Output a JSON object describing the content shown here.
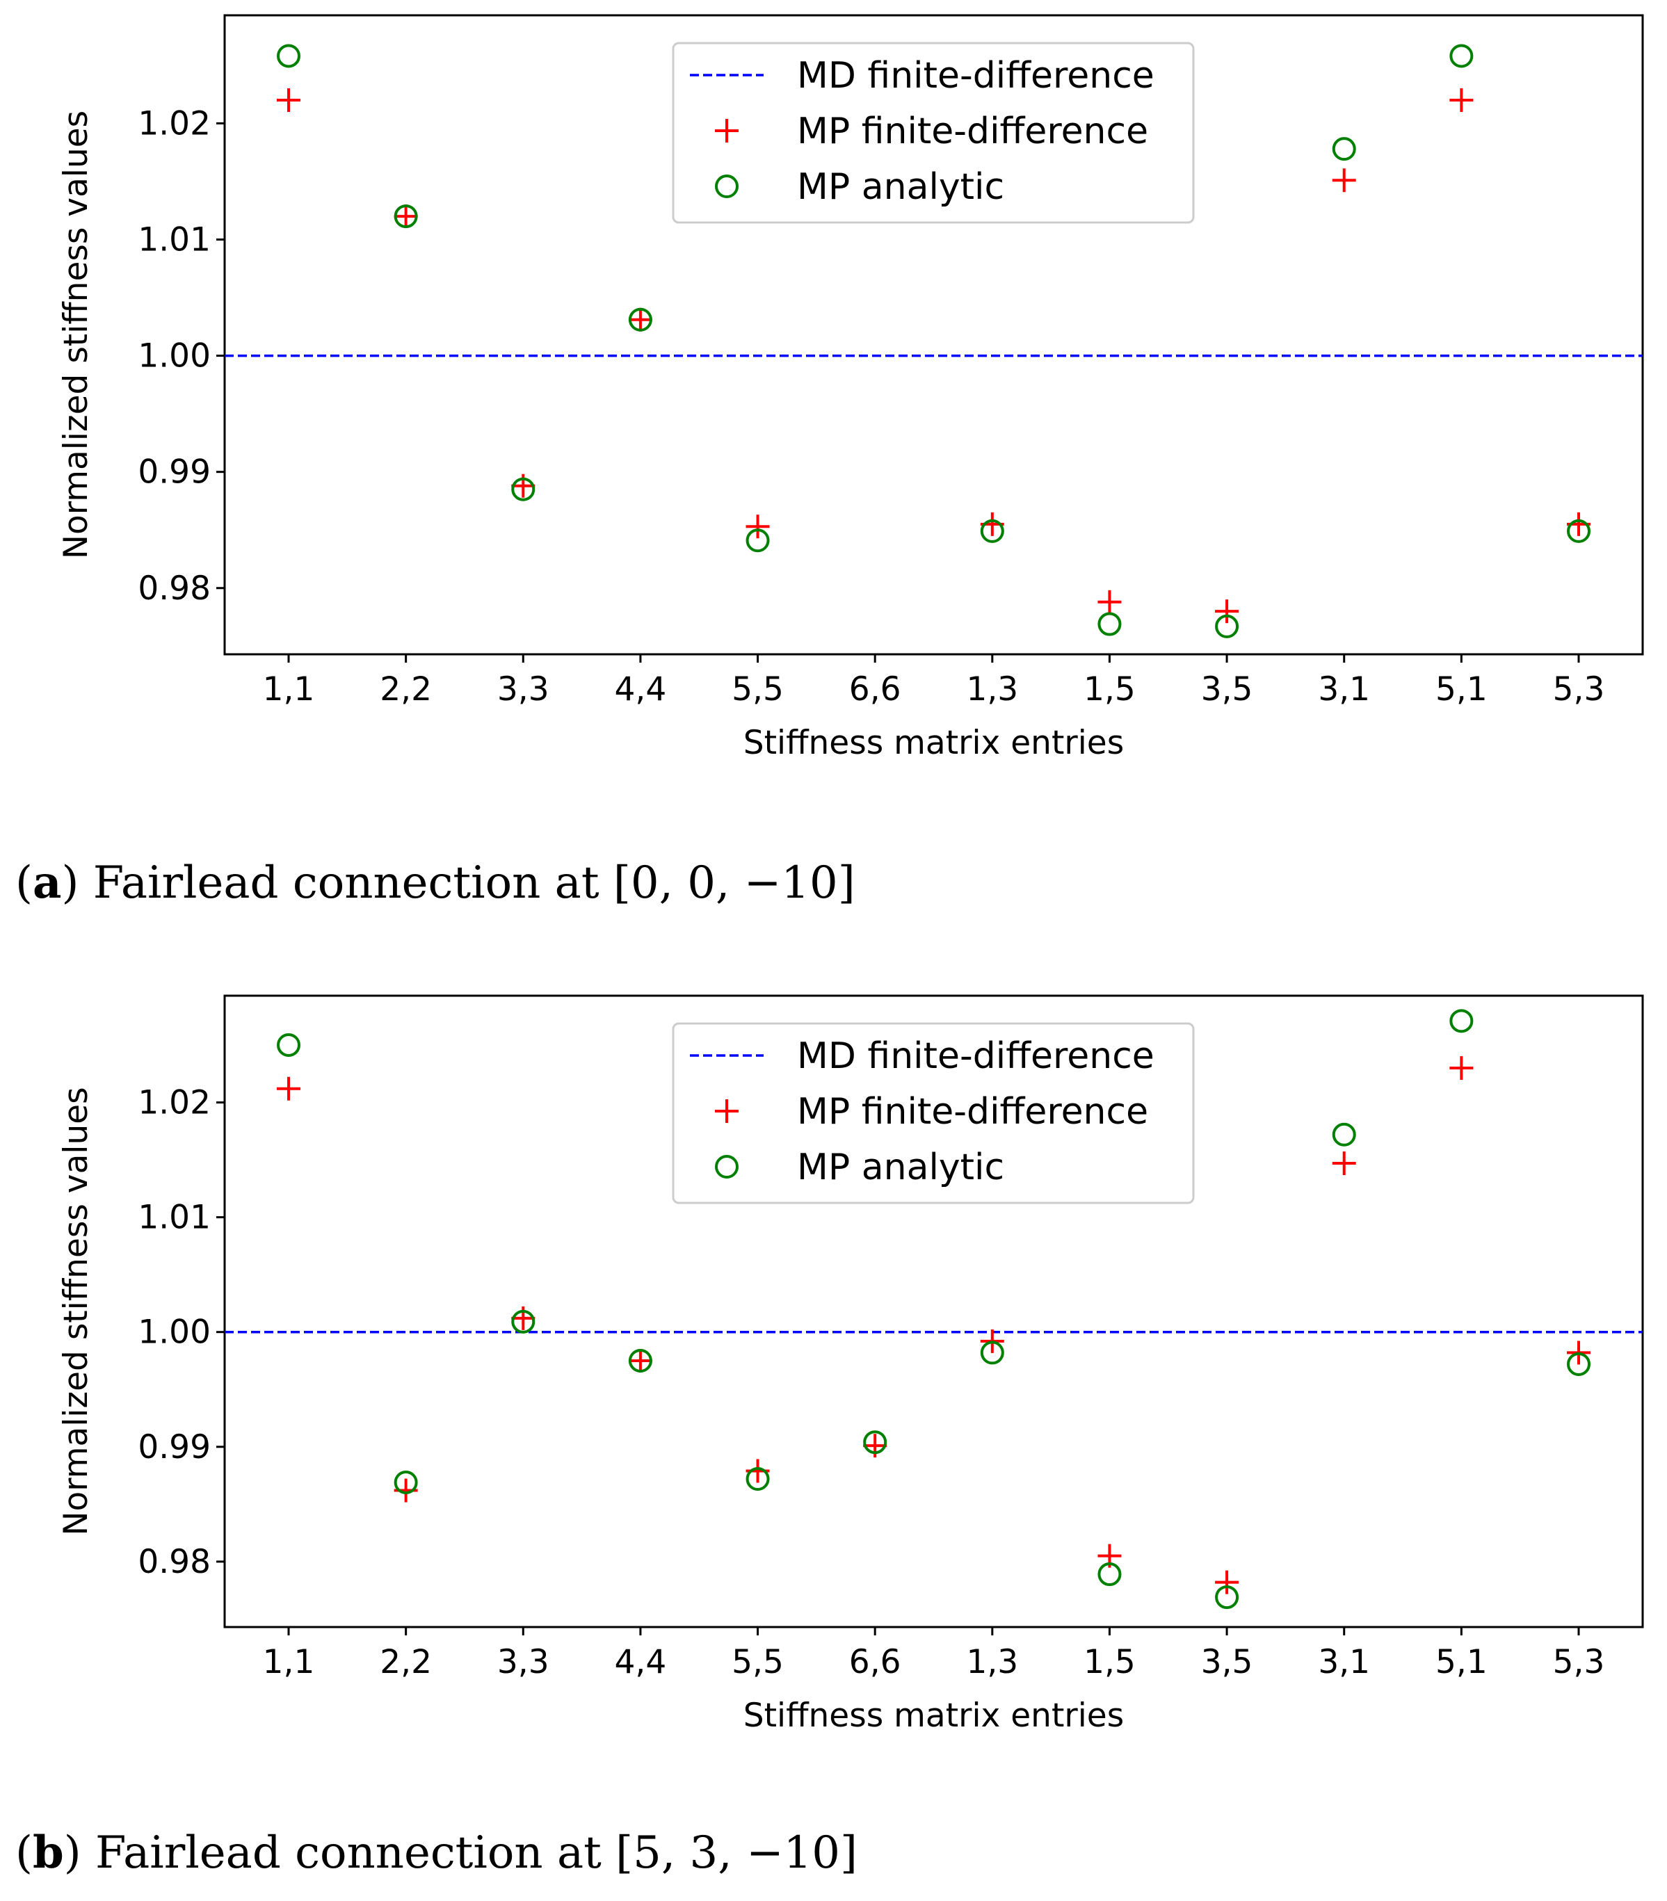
{
  "colors": {
    "md_line": "#0000ff",
    "mp_fd_marker": "#ff0000",
    "mp_analytic_marker": "#008000",
    "axes": "#000000",
    "legend_border": "#cccccc"
  },
  "chart_data": [
    {
      "type": "scatter",
      "caption_letter": "a",
      "caption_text": "Fairlead connection at [0, 0, −10]",
      "xlabel": "Stiffness matrix entries",
      "ylabel": "Normalized stiffness values",
      "categories": [
        "1,1",
        "2,2",
        "3,3",
        "4,4",
        "5,5",
        "6,6",
        "1,3",
        "1,5",
        "3,5",
        "3,1",
        "5,1",
        "5,3"
      ],
      "yticks": [
        "0.98",
        "0.99",
        "1.00",
        "1.01",
        "1.02"
      ],
      "ytick_values": [
        0.98,
        0.99,
        1.0,
        1.01,
        1.02
      ],
      "ylim": [
        0.9743,
        1.0293
      ],
      "legend_position": "upper center",
      "series": [
        {
          "name": "MD finite-difference",
          "kind": "dashed-line",
          "y": 1.0
        },
        {
          "name": "MP finite-difference",
          "kind": "plus-marker",
          "values": [
            1.022,
            1.012,
            0.9888,
            1.0031,
            0.9853,
            null,
            0.9855,
            0.9788,
            0.978,
            1.0151,
            1.022,
            0.9855
          ]
        },
        {
          "name": "MP analytic",
          "kind": "circle-marker",
          "values": [
            1.0258,
            1.012,
            0.9885,
            1.0031,
            0.9841,
            null,
            0.9849,
            0.9769,
            0.9767,
            1.0178,
            1.0258,
            0.9849
          ]
        }
      ]
    },
    {
      "type": "scatter",
      "caption_letter": "b",
      "caption_text": "Fairlead connection at [5, 3, −10]",
      "xlabel": "Stiffness matrix entries",
      "ylabel": "Normalized stiffness values",
      "categories": [
        "1,1",
        "2,2",
        "3,3",
        "4,4",
        "5,5",
        "6,6",
        "1,3",
        "1,5",
        "3,5",
        "3,1",
        "5,1",
        "5,3"
      ],
      "yticks": [
        "0.98",
        "0.99",
        "1.00",
        "1.01",
        "1.02"
      ],
      "ytick_values": [
        0.98,
        0.99,
        1.0,
        1.01,
        1.02
      ],
      "ylim": [
        0.9743,
        1.0293
      ],
      "legend_position": "upper center",
      "series": [
        {
          "name": "MD finite-difference",
          "kind": "dashed-line",
          "y": 1.0
        },
        {
          "name": "MP finite-difference",
          "kind": "plus-marker",
          "values": [
            1.0212,
            0.9862,
            1.0012,
            0.9975,
            0.9879,
            0.9901,
            0.9992,
            0.9805,
            0.9782,
            1.0147,
            1.023,
            0.9982
          ]
        },
        {
          "name": "MP analytic",
          "kind": "circle-marker",
          "values": [
            1.025,
            0.9869,
            1.0009,
            0.9975,
            0.9872,
            0.9904,
            0.9982,
            0.9789,
            0.9769,
            1.0172,
            1.0271,
            0.9972
          ]
        }
      ]
    }
  ]
}
